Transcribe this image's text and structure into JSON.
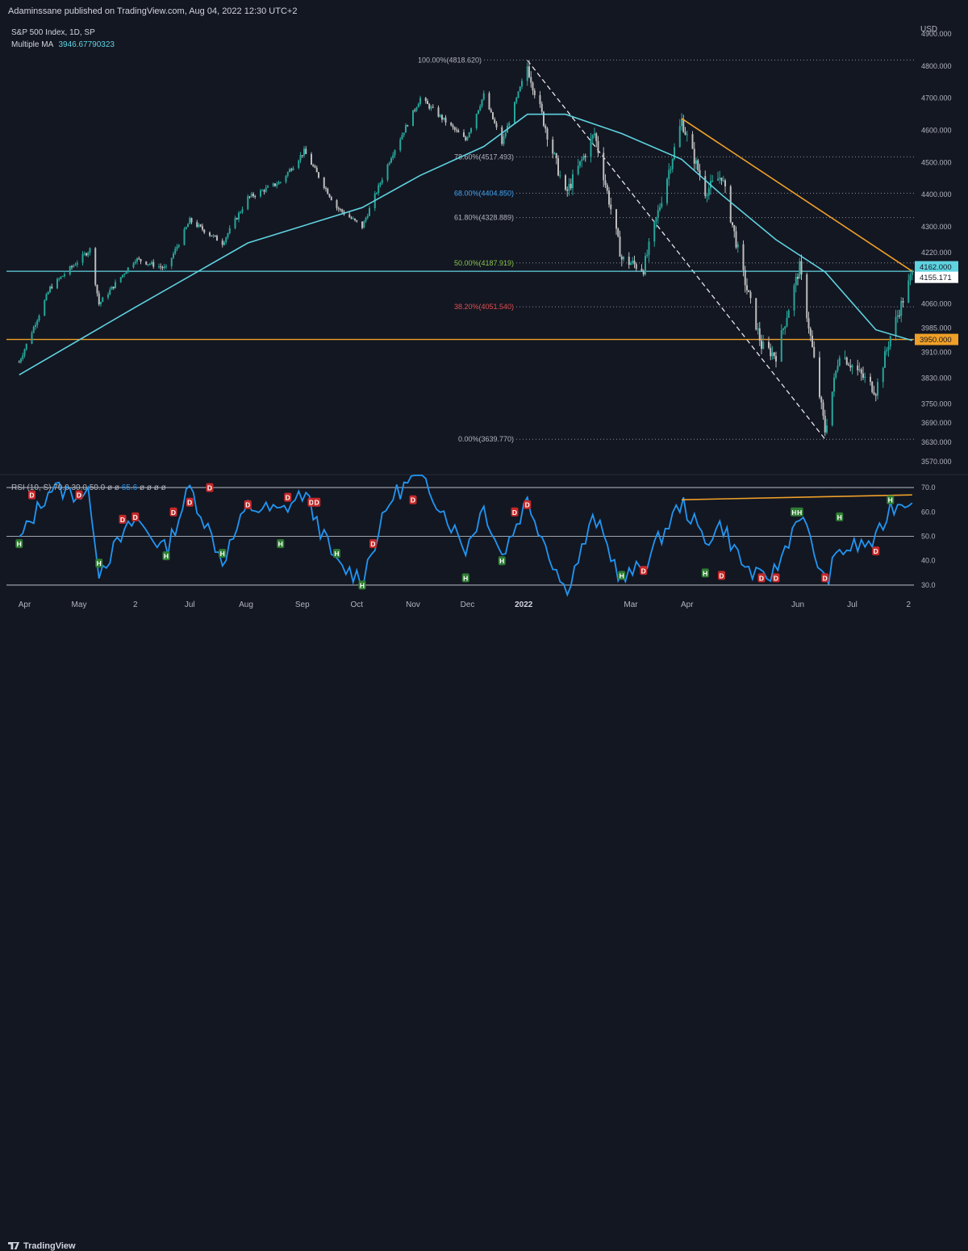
{
  "header": {
    "published": "Adaminssane published on TradingView.com, Aug 04, 2022 12:30 UTC+2"
  },
  "legend": {
    "symbol": "S&P 500 Index, 1D, SP",
    "ma_label": "Multiple MA",
    "ma_value": "3946.67790323"
  },
  "currency": "USD",
  "rsi_legend": {
    "label": "RSI (10, S)",
    "params": "70.0  30.0  50.0  ø  ø",
    "value": "65.6",
    "tail": "ø  ø  ø  ø"
  },
  "footer": {
    "brand": "TradingView"
  },
  "colors": {
    "background": "#131722",
    "up": "#26a69a",
    "down": "#bdbdbd",
    "ma": "#5fd3e0",
    "trendline": "#f0a028",
    "support": "#f0a028",
    "rsi": "#2196f3",
    "fib_red": "#e05050"
  },
  "chart_data": {
    "type": "candlestick",
    "ylim": [
      3570,
      4900
    ],
    "price_ticks": [
      "4900.000",
      "4800.000",
      "4700.000",
      "4600.000",
      "4500.000",
      "4400.000",
      "4300.000",
      "4220.000",
      "4060.000",
      "3985.000",
      "3910.000",
      "3830.000",
      "3750.000",
      "3690.000",
      "3630.000",
      "3570.000"
    ],
    "price_tick_values": [
      4900,
      4800,
      4700,
      4600,
      4500,
      4400,
      4300,
      4220,
      4060,
      3985,
      3910,
      3830,
      3750,
      3690,
      3630,
      3570
    ],
    "x_labels": [
      "Apr",
      "May",
      "2",
      "Jul",
      "Aug",
      "Sep",
      "Oct",
      "Nov",
      "Dec",
      "2022",
      "Mar",
      "Apr",
      "Jun",
      "Jul",
      "2"
    ],
    "price_series": [
      [
        "2021-03-29",
        3880
      ],
      [
        "2021-04-15",
        4110
      ],
      [
        "2021-05-07",
        4230
      ],
      [
        "2021-05-12",
        4060
      ],
      [
        "2021-06-01",
        4200
      ],
      [
        "2021-06-18",
        4170
      ],
      [
        "2021-07-01",
        4320
      ],
      [
        "2021-07-19",
        4250
      ],
      [
        "2021-08-02",
        4390
      ],
      [
        "2021-08-20",
        4440
      ],
      [
        "2021-09-02",
        4535
      ],
      [
        "2021-09-20",
        4360
      ],
      [
        "2021-10-04",
        4300
      ],
      [
        "2021-10-20",
        4520
      ],
      [
        "2021-11-05",
        4700
      ],
      [
        "2021-11-30",
        4570
      ],
      [
        "2021-12-10",
        4710
      ],
      [
        "2021-12-20",
        4560
      ],
      [
        "2022-01-03",
        4800
      ],
      [
        "2022-01-24",
        4400
      ],
      [
        "2022-02-09",
        4590
      ],
      [
        "2022-02-24",
        4200
      ],
      [
        "2022-03-08",
        4170
      ],
      [
        "2022-03-29",
        4630
      ],
      [
        "2022-04-11",
        4410
      ],
      [
        "2022-04-20",
        4460
      ],
      [
        "2022-05-02",
        4150
      ],
      [
        "2022-05-12",
        3930
      ],
      [
        "2022-05-20",
        3900
      ],
      [
        "2022-06-02",
        4175
      ],
      [
        "2022-06-16",
        3666
      ],
      [
        "2022-06-24",
        3911
      ],
      [
        "2022-07-14",
        3790
      ],
      [
        "2022-07-22",
        3961
      ],
      [
        "2022-08-03",
        4155
      ]
    ],
    "moving_average": [
      [
        "2021-03-29",
        3840
      ],
      [
        "2021-06-01",
        4050
      ],
      [
        "2021-08-02",
        4250
      ],
      [
        "2021-10-04",
        4360
      ],
      [
        "2021-11-05",
        4460
      ],
      [
        "2021-12-10",
        4550
      ],
      [
        "2022-01-03",
        4650
      ],
      [
        "2022-01-24",
        4650
      ],
      [
        "2022-02-24",
        4590
      ],
      [
        "2022-03-29",
        4510
      ],
      [
        "2022-04-20",
        4400
      ],
      [
        "2022-05-20",
        4260
      ],
      [
        "2022-06-16",
        4160
      ],
      [
        "2022-07-14",
        3980
      ],
      [
        "2022-08-03",
        3946.68
      ]
    ],
    "fib_levels": [
      {
        "label": "100.00%(4818.620)",
        "value": 4818.62,
        "color": "#b2b5be"
      },
      {
        "label": "78.60%(4517.493)",
        "value": 4517.493,
        "color": "#b2b5be"
      },
      {
        "label": "68.00%(4404.850)",
        "value": 4404.85,
        "color": "#42a5f5"
      },
      {
        "label": "61.80%(4328.889)",
        "value": 4328.889,
        "color": "#b2b5be"
      },
      {
        "label": "50.00%(4187.919)",
        "value": 4187.919,
        "color": "#8bc34a"
      },
      {
        "label": "38.20%(4051.540)",
        "value": 4051.54,
        "color": "#e05050"
      },
      {
        "label": "0.00%(3639.770)",
        "value": 3639.77,
        "color": "#b2b5be"
      }
    ],
    "horizontal_lines": [
      {
        "label": "4162.000",
        "value": 4162,
        "color": "#5fd3e0"
      },
      {
        "label": "3950.000",
        "value": 3950,
        "color": "#f0a028"
      }
    ],
    "last_price": {
      "label": "4155.171",
      "value": 4155.171
    },
    "downtrend": [
      [
        "2022-03-29",
        4637
      ],
      [
        "2022-08-03",
        4162
      ]
    ],
    "fib_diagonal": [
      [
        "2022-01-03",
        4818
      ],
      [
        "2022-06-16",
        3640
      ]
    ],
    "rsi": {
      "ylim": [
        27,
        74
      ],
      "ticks": [
        "70.0",
        "60.0",
        "50.0",
        "40.0",
        "30.0"
      ],
      "tick_values": [
        70,
        60,
        50,
        40,
        30
      ],
      "series": [
        [
          "2021-03-29",
          48
        ],
        [
          "2021-04-15",
          70
        ],
        [
          "2021-05-07",
          66
        ],
        [
          "2021-05-12",
          36
        ],
        [
          "2021-06-01",
          57
        ],
        [
          "2021-06-18",
          44
        ],
        [
          "2021-07-01",
          70
        ],
        [
          "2021-07-19",
          40
        ],
        [
          "2021-08-02",
          62
        ],
        [
          "2021-08-20",
          60
        ],
        [
          "2021-09-02",
          68
        ],
        [
          "2021-09-20",
          38
        ],
        [
          "2021-10-04",
          33
        ],
        [
          "2021-10-20",
          66
        ],
        [
          "2021-11-05",
          76
        ],
        [
          "2021-11-30",
          45
        ],
        [
          "2021-12-10",
          62
        ],
        [
          "2021-12-20",
          42
        ],
        [
          "2022-01-03",
          65
        ],
        [
          "2022-01-24",
          27
        ],
        [
          "2022-02-09",
          58
        ],
        [
          "2022-02-24",
          32
        ],
        [
          "2022-03-08",
          38
        ],
        [
          "2022-03-29",
          64
        ],
        [
          "2022-04-11",
          48
        ],
        [
          "2022-04-20",
          55
        ],
        [
          "2022-05-02",
          38
        ],
        [
          "2022-05-12",
          32
        ],
        [
          "2022-05-20",
          36
        ],
        [
          "2022-06-02",
          60
        ],
        [
          "2022-06-16",
          31
        ],
        [
          "2022-06-24",
          44
        ],
        [
          "2022-07-14",
          48
        ],
        [
          "2022-07-22",
          62
        ],
        [
          "2022-08-03",
          65.6
        ]
      ],
      "divergence": [
        [
          "2022-03-29",
          65
        ],
        [
          "2022-08-03",
          67
        ]
      ],
      "markers": [
        {
          "t": "H",
          "date": "2021-03-29",
          "v": 47
        },
        {
          "t": "D",
          "date": "2021-04-05",
          "v": 67
        },
        {
          "t": "D",
          "date": "2021-05-01",
          "v": 67
        },
        {
          "t": "H",
          "date": "2021-05-12",
          "v": 39
        },
        {
          "t": "D",
          "date": "2021-05-25",
          "v": 57
        },
        {
          "t": "D",
          "date": "2021-06-01",
          "v": 58
        },
        {
          "t": "H",
          "date": "2021-06-18",
          "v": 42
        },
        {
          "t": "D",
          "date": "2021-06-22",
          "v": 60
        },
        {
          "t": "D",
          "date": "2021-07-01",
          "v": 64
        },
        {
          "t": "D",
          "date": "2021-07-12",
          "v": 70
        },
        {
          "t": "H",
          "date": "2021-07-19",
          "v": 43
        },
        {
          "t": "D",
          "date": "2021-08-02",
          "v": 63
        },
        {
          "t": "H",
          "date": "2021-08-20",
          "v": 47
        },
        {
          "t": "D",
          "date": "2021-08-24",
          "v": 66
        },
        {
          "t": "D",
          "date": "2021-09-06",
          "v": 64
        },
        {
          "t": "D",
          "date": "2021-09-09",
          "v": 64
        },
        {
          "t": "H",
          "date": "2021-09-20",
          "v": 43
        },
        {
          "t": "H",
          "date": "2021-10-04",
          "v": 30
        },
        {
          "t": "D",
          "date": "2021-10-10",
          "v": 47
        },
        {
          "t": "D",
          "date": "2021-11-01",
          "v": 65
        },
        {
          "t": "H",
          "date": "2021-11-30",
          "v": 33
        },
        {
          "t": "H",
          "date": "2021-12-20",
          "v": 40
        },
        {
          "t": "D",
          "date": "2021-12-27",
          "v": 60
        },
        {
          "t": "D",
          "date": "2022-01-03",
          "v": 63
        },
        {
          "t": "H",
          "date": "2022-02-24",
          "v": 34
        },
        {
          "t": "D",
          "date": "2022-03-08",
          "v": 36
        },
        {
          "t": "H",
          "date": "2022-04-11",
          "v": 35
        },
        {
          "t": "D",
          "date": "2022-04-20",
          "v": 34
        },
        {
          "t": "D",
          "date": "2022-05-12",
          "v": 33
        },
        {
          "t": "D",
          "date": "2022-05-20",
          "v": 33
        },
        {
          "t": "H",
          "date": "2022-05-30",
          "v": 60
        },
        {
          "t": "H",
          "date": "2022-06-02",
          "v": 60
        },
        {
          "t": "D",
          "date": "2022-06-16",
          "v": 33
        },
        {
          "t": "H",
          "date": "2022-06-24",
          "v": 58
        },
        {
          "t": "D",
          "date": "2022-07-14",
          "v": 44
        },
        {
          "t": "H",
          "date": "2022-07-22",
          "v": 65
        }
      ]
    }
  }
}
